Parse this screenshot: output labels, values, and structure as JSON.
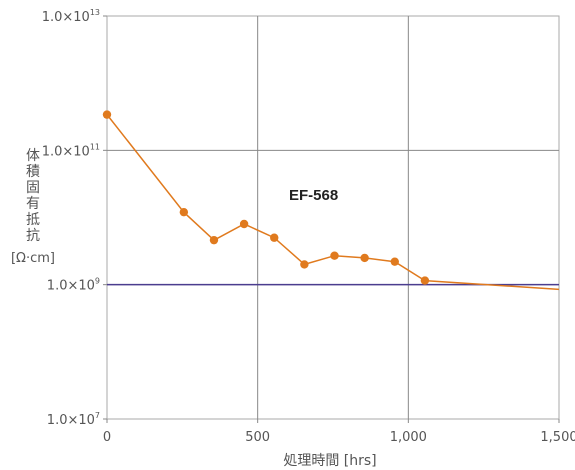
{
  "chart_data": {
    "type": "line",
    "y_scale": "log",
    "grid": true,
    "xlabel": "処理時間 [hrs]",
    "ylabel_chars": [
      "体",
      "積",
      "固",
      "有",
      "抵",
      "抗"
    ],
    "yunit": "[Ω·cm]",
    "xlim": [
      0,
      1500
    ],
    "ylim": [
      10000000.0,
      10000000000000.0
    ],
    "x_ticks": [
      {
        "value": 0,
        "label": "0"
      },
      {
        "value": 500,
        "label": "500"
      },
      {
        "value": 1000,
        "label": "1,000"
      },
      {
        "value": 1500,
        "label": "1,500"
      }
    ],
    "y_ticks": [
      {
        "value": 10000000.0,
        "mantissa": "1.0×10",
        "exp": "7"
      },
      {
        "value": 1000000000.0,
        "mantissa": "1.0×10",
        "exp": "9"
      },
      {
        "value": 100000000000.0,
        "mantissa": "1.0×10",
        "exp": "11"
      },
      {
        "value": 10000000000000.0,
        "mantissa": "1.0×10",
        "exp": "13"
      }
    ],
    "reference_line": {
      "y": 1000000000.0,
      "color": "#4b3d8f"
    },
    "series": [
      {
        "name": "EF-568",
        "color": "#e07a1e",
        "points": [
          {
            "x": 0,
            "y": 340000000000.0
          },
          {
            "x": 255,
            "y": 12000000000.0
          },
          {
            "x": 355,
            "y": 4600000000.0
          },
          {
            "x": 455,
            "y": 8000000000.0
          },
          {
            "x": 555,
            "y": 5000000000.0
          },
          {
            "x": 655,
            "y": 2000000000.0
          },
          {
            "x": 755,
            "y": 2700000000.0
          },
          {
            "x": 855,
            "y": 2500000000.0
          },
          {
            "x": 955,
            "y": 2200000000.0
          },
          {
            "x": 1055,
            "y": 1150000000.0
          },
          {
            "x": 1500,
            "y": 850000000.0
          }
        ],
        "markers_count": 10
      }
    ]
  }
}
